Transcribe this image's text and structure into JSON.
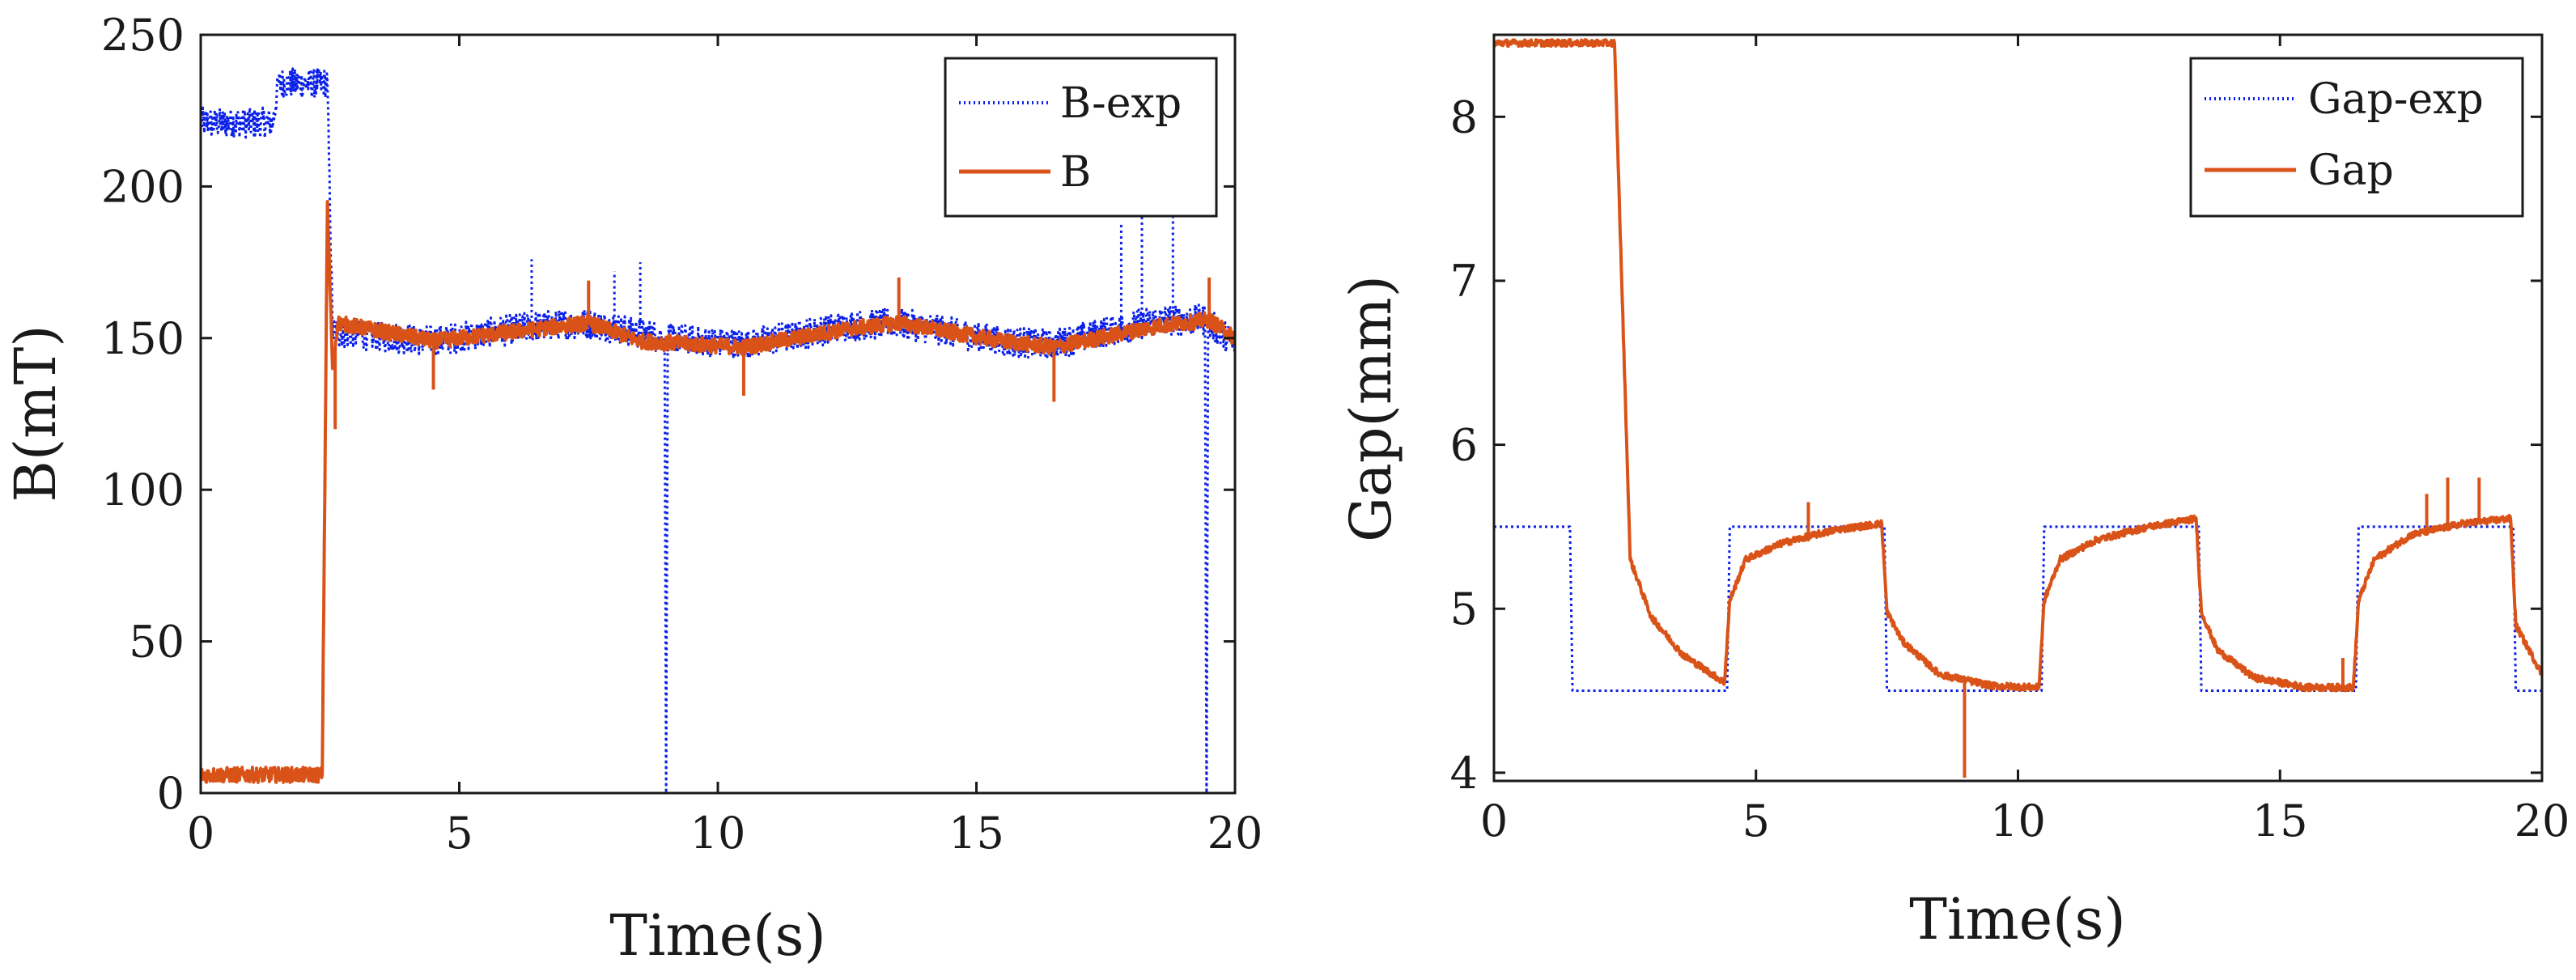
{
  "colors": {
    "exp": "#0a1fe8",
    "sim": "#d95319",
    "axis": "#1a1a1a",
    "background": "#ffffff"
  },
  "chart_data": [
    {
      "type": "line",
      "xlabel": "Time(s)",
      "ylabel": "B(mT)",
      "xlim": [
        0,
        20
      ],
      "ylim": [
        0,
        250
      ],
      "xticks": [
        0,
        5,
        10,
        15,
        20
      ],
      "yticks": [
        0,
        50,
        100,
        150,
        200,
        250
      ],
      "grid": false,
      "legend_position": "top-right",
      "series": [
        {
          "name": "B-exp",
          "style": "dotted",
          "color": "#0a1fe8",
          "noise": 5,
          "points": [
            [
              0,
              221
            ],
            [
              1.4,
              221
            ],
            [
              1.5,
              234
            ],
            [
              2.45,
              234
            ],
            [
              2.55,
              152
            ],
            [
              4.5,
              149
            ],
            [
              6.5,
              154
            ],
            [
              7.5,
              155
            ],
            [
              8.97,
              150
            ],
            [
              9.0,
              0
            ],
            [
              9.03,
              150
            ],
            [
              10.5,
              148
            ],
            [
              12.5,
              154
            ],
            [
              13.5,
              155
            ],
            [
              15.5,
              149
            ],
            [
              16.5,
              148
            ],
            [
              18.5,
              156
            ],
            [
              19.42,
              156
            ],
            [
              19.45,
              0
            ],
            [
              19.48,
              155
            ],
            [
              20,
              148
            ]
          ],
          "spikes": [
            [
              6.4,
              176
            ],
            [
              8.0,
              172
            ],
            [
              8.5,
              175
            ],
            [
              17.8,
              188
            ],
            [
              18.2,
              198
            ],
            [
              18.8,
              191
            ]
          ]
        },
        {
          "name": "B",
          "style": "solid",
          "color": "#d95319",
          "noise": 2.5,
          "points": [
            [
              0,
              6
            ],
            [
              2.35,
              6
            ],
            [
              2.45,
              195
            ],
            [
              2.55,
              140
            ],
            [
              2.65,
              155
            ],
            [
              4.5,
              149
            ],
            [
              6.5,
              153
            ],
            [
              7.5,
              155
            ],
            [
              8.5,
              149
            ],
            [
              10.5,
              147
            ],
            [
              12.5,
              153
            ],
            [
              13.5,
              155
            ],
            [
              15.5,
              149
            ],
            [
              16.5,
              147
            ],
            [
              18.5,
              154
            ],
            [
              19.5,
              156
            ],
            [
              20,
              150
            ]
          ],
          "spikes": [
            [
              2.6,
              120
            ],
            [
              4.5,
              133
            ],
            [
              7.5,
              169
            ],
            [
              10.5,
              131
            ],
            [
              13.5,
              170
            ],
            [
              16.5,
              129
            ],
            [
              19.5,
              170
            ]
          ]
        }
      ]
    },
    {
      "type": "line",
      "xlabel": "Time(s)",
      "ylabel": "Gap(mm)",
      "xlim": [
        0,
        20
      ],
      "ylim": [
        3.95,
        8.5
      ],
      "xticks": [
        0,
        5,
        10,
        15,
        20
      ],
      "yticks": [
        4,
        5,
        6,
        7,
        8
      ],
      "grid": false,
      "legend_position": "top-right",
      "series": [
        {
          "name": "Gap-exp",
          "style": "dotted",
          "color": "#0a1fe8",
          "noise": 0,
          "points": [
            [
              0,
              5.5
            ],
            [
              1.45,
              5.5
            ],
            [
              1.5,
              4.5
            ],
            [
              4.45,
              4.5
            ],
            [
              4.5,
              5.5
            ],
            [
              7.45,
              5.5
            ],
            [
              7.5,
              4.5
            ],
            [
              10.45,
              4.5
            ],
            [
              10.5,
              5.5
            ],
            [
              13.45,
              5.5
            ],
            [
              13.5,
              4.5
            ],
            [
              16.45,
              4.5
            ],
            [
              16.5,
              5.5
            ],
            [
              19.45,
              5.5
            ],
            [
              19.5,
              4.5
            ],
            [
              20,
              4.5
            ]
          ],
          "spikes": []
        },
        {
          "name": "Gap",
          "style": "solid",
          "color": "#d95319",
          "noise": 0.02,
          "points": [
            [
              0,
              8.45
            ],
            [
              2.3,
              8.45
            ],
            [
              2.6,
              5.3
            ],
            [
              3.0,
              4.95
            ],
            [
              3.6,
              4.72
            ],
            [
              4.4,
              4.55
            ],
            [
              4.5,
              5.05
            ],
            [
              4.8,
              5.3
            ],
            [
              5.5,
              5.4
            ],
            [
              6.5,
              5.48
            ],
            [
              7.4,
              5.52
            ],
            [
              7.5,
              4.98
            ],
            [
              7.8,
              4.8
            ],
            [
              8.5,
              4.6
            ],
            [
              9.5,
              4.53
            ],
            [
              10.4,
              4.52
            ],
            [
              10.5,
              5.05
            ],
            [
              10.8,
              5.3
            ],
            [
              11.5,
              5.42
            ],
            [
              12.5,
              5.5
            ],
            [
              13.4,
              5.55
            ],
            [
              13.5,
              4.98
            ],
            [
              13.8,
              4.75
            ],
            [
              14.5,
              4.58
            ],
            [
              15.5,
              4.52
            ],
            [
              16.4,
              4.52
            ],
            [
              16.5,
              5.05
            ],
            [
              16.8,
              5.3
            ],
            [
              17.5,
              5.45
            ],
            [
              18.5,
              5.52
            ],
            [
              19.4,
              5.55
            ],
            [
              19.5,
              4.9
            ],
            [
              19.8,
              4.72
            ],
            [
              20,
              4.6
            ]
          ],
          "spikes": [
            [
              6.0,
              5.65
            ],
            [
              8.98,
              3.97
            ],
            [
              16.2,
              4.7
            ],
            [
              17.8,
              5.7
            ],
            [
              18.2,
              5.8
            ],
            [
              18.8,
              5.8
            ]
          ]
        }
      ]
    }
  ]
}
